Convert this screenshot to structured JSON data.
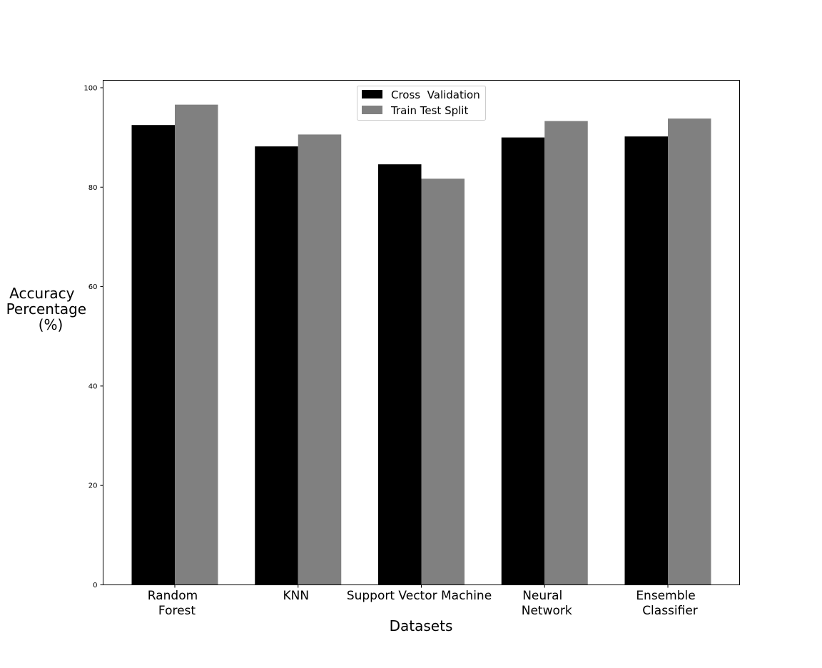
{
  "chart_data": {
    "type": "bar",
    "title": "",
    "xlabel": "Datasets",
    "ylabel": [
      "Accuracy",
      "Percentage",
      "(%)"
    ],
    "categories": [
      [
        "Random",
        "Forest"
      ],
      [
        "KNN"
      ],
      [
        "Support Vector Machine"
      ],
      [
        "Neural",
        "Network"
      ],
      [
        "Ensemble",
        "Classifier"
      ]
    ],
    "series": [
      {
        "name": "Cross  Validation",
        "color": "#000000",
        "values": [
          92.5,
          88.2,
          84.6,
          90.0,
          90.2
        ]
      },
      {
        "name": "Train Test Split",
        "color": "#808080",
        "values": [
          96.6,
          90.6,
          81.7,
          93.3,
          93.8
        ]
      }
    ],
    "ylim": [
      0,
      101.5
    ],
    "yticks": [
      0,
      20,
      40,
      60,
      80,
      100
    ],
    "grid": false,
    "legend_position": "top-center"
  }
}
